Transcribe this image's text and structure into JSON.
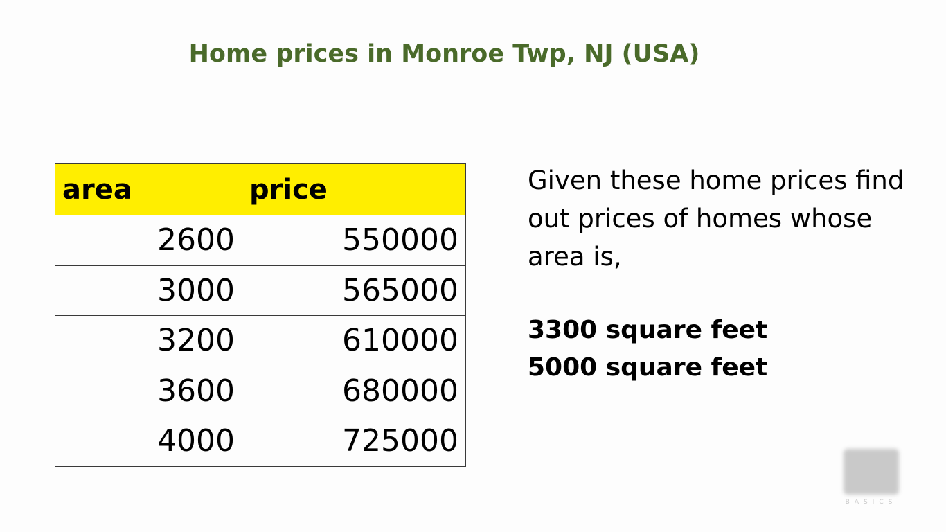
{
  "slide": {
    "title": "Home prices in Monroe Twp, NJ (USA)"
  },
  "table": {
    "headers": [
      "area",
      "price"
    ],
    "header_color": "#ffee00",
    "rows": [
      {
        "area": "2600",
        "price": "550000"
      },
      {
        "area": "3000",
        "price": "565000"
      },
      {
        "area": "3200",
        "price": "610000"
      },
      {
        "area": "3600",
        "price": "680000"
      },
      {
        "area": "4000",
        "price": "725000"
      }
    ]
  },
  "prompt": {
    "lines": [
      "Given these home prices find",
      "out prices of homes whose",
      "area is,"
    ],
    "queries": [
      "3300 square feet",
      "5000 square feet"
    ]
  },
  "watermark": {
    "text": "BASICS"
  },
  "colors": {
    "title": "#4a6a2a",
    "background": "#fdfdfd"
  }
}
